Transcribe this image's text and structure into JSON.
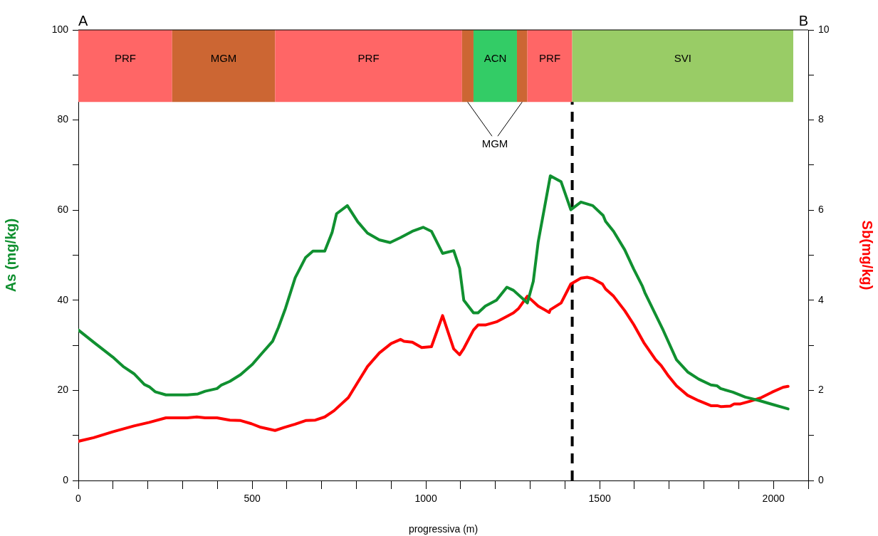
{
  "chart_data": {
    "type": "line",
    "xlabel": "progressiva (m)",
    "ylabel": "As (mg/kg)",
    "y2label": "Sb(mg/kg)",
    "xlim": [
      0,
      2100
    ],
    "xticks": [
      0,
      {
        "value": 100,
        "label": null
      },
      {
        "value": 200,
        "label": null
      },
      {
        "value": 300,
        "label": null
      },
      {
        "value": 400,
        "label": null
      },
      500,
      {
        "value": 600,
        "label": null
      },
      {
        "value": 700,
        "label": null
      },
      {
        "value": 800,
        "label": null
      },
      {
        "value": 900,
        "label": null
      },
      1000,
      {
        "value": 1100,
        "label": null
      },
      {
        "value": 1200,
        "label": null
      },
      {
        "value": 1300,
        "label": null
      },
      {
        "value": 1400,
        "label": null
      },
      1500,
      {
        "value": 1600,
        "label": null
      },
      {
        "value": 1700,
        "label": null
      },
      {
        "value": 1800,
        "label": null
      },
      {
        "value": 1900,
        "label": null
      },
      2000,
      {
        "value": 2100,
        "label": null
      }
    ],
    "ylim": [
      0,
      100
    ],
    "yticks": [
      0,
      {
        "value": 10,
        "label": null
      },
      20,
      {
        "value": 30,
        "label": null
      },
      40,
      {
        "value": 50,
        "label": null
      },
      60,
      {
        "value": 70,
        "label": null
      },
      80,
      {
        "value": 90,
        "label": null
      },
      100
    ],
    "y2lim": [
      0,
      10
    ],
    "y2ticks": [
      0,
      {
        "value": 1,
        "label": null
      },
      2,
      {
        "value": 3,
        "label": null
      },
      4,
      {
        "value": 5,
        "label": null
      },
      6,
      {
        "value": 7,
        "label": null
      },
      8,
      {
        "value": 9,
        "label": null
      },
      10
    ],
    "grid": false,
    "legend": false,
    "marker": "none",
    "line_style": "solid",
    "series": [
      {
        "color": "#109030",
        "axis": "y",
        "x": [
          0,
          47,
          99,
          129,
          160,
          190,
          204,
          221,
          252,
          313,
          344,
          365,
          399,
          412,
          436,
          467,
          501,
          528,
          559,
          576,
          596,
          624,
          654,
          675,
          709,
          730,
          743,
          774,
          804,
          832,
          866,
          897,
          927,
          961,
          992,
          1016,
          1048,
          1080,
          1097,
          1109,
          1137,
          1150,
          1171,
          1203,
          1233,
          1252,
          1292,
          1309,
          1323,
          1358,
          1389,
          1417,
          1446,
          1480,
          1510,
          1517,
          1540,
          1572,
          1598,
          1623,
          1630,
          1661,
          1683,
          1721,
          1753,
          1785,
          1820,
          1838,
          1848,
          1883,
          1919,
          1961,
          1996,
          2042
        ],
        "values": [
          33.4,
          30.5,
          27.4,
          25.3,
          23.7,
          21.3,
          20.8,
          19.7,
          19.0,
          19.0,
          19.2,
          19.8,
          20.4,
          21.2,
          22.0,
          23.5,
          25.8,
          28.2,
          30.9,
          34.0,
          38.2,
          45.0,
          49.5,
          50.9,
          50.9,
          55.0,
          59.2,
          61.0,
          57.4,
          54.9,
          53.4,
          52.8,
          53.9,
          55.3,
          56.2,
          55.3,
          50.4,
          51.0,
          47.1,
          40.0,
          37.2,
          37.2,
          38.7,
          40.0,
          42.9,
          42.2,
          39.4,
          44.2,
          52.9,
          67.6,
          66.3,
          60.1,
          61.8,
          61.0,
          58.8,
          57.5,
          55.3,
          51.2,
          46.9,
          43.1,
          41.7,
          36.8,
          33.3,
          26.8,
          24.1,
          22.5,
          21.2,
          21.0,
          20.4,
          19.6,
          18.5,
          17.7,
          16.9,
          15.9
        ]
      },
      {
        "color": "#ff0000",
        "axis": "y2",
        "x": [
          0,
          44,
          99,
          160,
          204,
          252,
          313,
          341,
          365,
          399,
          436,
          467,
          498,
          525,
          566,
          593,
          624,
          654,
          682,
          709,
          736,
          777,
          804,
          832,
          866,
          900,
          927,
          937,
          961,
          988,
          1016,
          1048,
          1080,
          1097,
          1109,
          1137,
          1150,
          1171,
          1203,
          1235,
          1252,
          1267,
          1292,
          1323,
          1355,
          1358,
          1389,
          1417,
          1446,
          1464,
          1480,
          1508,
          1517,
          1540,
          1572,
          1598,
          1627,
          1661,
          1677,
          1696,
          1721,
          1753,
          1785,
          1820,
          1838,
          1848,
          1876,
          1887,
          1905,
          1933,
          1965,
          1996,
          2028,
          2042
        ],
        "values": [
          0.87,
          0.95,
          1.08,
          1.21,
          1.29,
          1.39,
          1.39,
          1.41,
          1.39,
          1.39,
          1.34,
          1.33,
          1.26,
          1.18,
          1.11,
          1.18,
          1.25,
          1.33,
          1.34,
          1.41,
          1.55,
          1.84,
          2.18,
          2.53,
          2.83,
          3.04,
          3.13,
          3.09,
          3.07,
          2.95,
          2.97,
          3.66,
          2.92,
          2.79,
          2.93,
          3.34,
          3.45,
          3.45,
          3.52,
          3.65,
          3.72,
          3.82,
          4.09,
          3.87,
          3.73,
          3.79,
          3.94,
          4.36,
          4.49,
          4.51,
          4.48,
          4.36,
          4.25,
          4.09,
          3.77,
          3.46,
          3.06,
          2.68,
          2.55,
          2.34,
          2.1,
          1.89,
          1.77,
          1.66,
          1.66,
          1.64,
          1.65,
          1.7,
          1.7,
          1.76,
          1.84,
          1.96,
          2.07,
          2.09
        ]
      }
    ],
    "bands": [
      {
        "axis": "x",
        "from": 0,
        "to": 270,
        "label": "PRF",
        "color": "#ff6666"
      },
      {
        "axis": "x",
        "from": 270,
        "to": 566,
        "label": "MGM",
        "color": "#cc6633"
      },
      {
        "axis": "x",
        "from": 566,
        "to": 1104,
        "label": "PRF",
        "color": "#ff6666"
      },
      {
        "axis": "x",
        "from": 1104,
        "to": 1137,
        "label": null,
        "color": "#cc6633"
      },
      {
        "axis": "x",
        "from": 1137,
        "to": 1262,
        "label": "ACN",
        "color": "#33cc66"
      },
      {
        "axis": "x",
        "from": 1262,
        "to": 1292,
        "label": null,
        "color": "#cc6633"
      },
      {
        "axis": "x",
        "from": 1292,
        "to": 1421,
        "label": "PRF",
        "color": "#ff6666"
      },
      {
        "axis": "x",
        "from": 1421,
        "to": 2057,
        "label": "SVI",
        "color": "#99cc66"
      }
    ],
    "ref_lines": [
      {
        "axis": "x",
        "value": 1421,
        "color": "#000000",
        "line_style": "dashed"
      }
    ],
    "annotations": [
      "A",
      "B",
      {
        "text": "MGM",
        "x": 1120,
        "y": 84
      }
    ]
  }
}
